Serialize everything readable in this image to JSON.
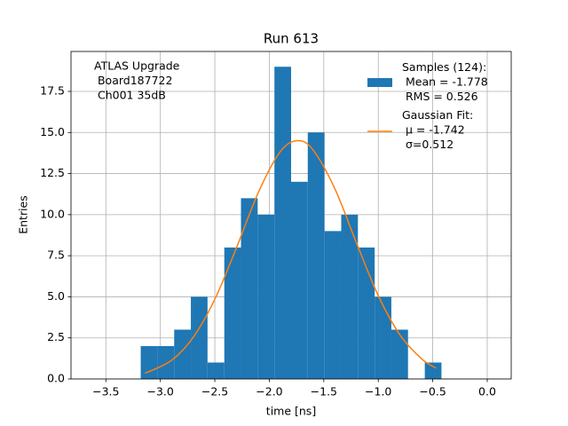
{
  "chart_data": {
    "type": "histogram",
    "title": "Run 613",
    "xlabel": "time [ns]",
    "ylabel": "Entries",
    "annotation": [
      "ATLAS Upgrade",
      " Board187722",
      " Ch001 35dB"
    ],
    "bins": [
      -3.18,
      -3.027,
      -2.873,
      -2.72,
      -2.567,
      -2.413,
      -2.26,
      -2.107,
      -1.953,
      -1.8,
      -1.647,
      -1.493,
      -1.34,
      -1.187,
      -1.033,
      -0.88,
      -0.727,
      -0.573,
      -0.42
    ],
    "series": [
      {
        "name": "Samples (124):\n Mean = -1.778\n RMS = 0.526",
        "color": "#1f77b4",
        "values": [
          2,
          2,
          3,
          5,
          1,
          8,
          11,
          10,
          19,
          12,
          15,
          9,
          10,
          8,
          5,
          3,
          0,
          1
        ]
      },
      {
        "name": "Gaussian Fit:\n μ = -1.742\n σ=0.512",
        "color": "#ff7f0e",
        "x": [
          -3.14,
          -2.9,
          -2.7,
          -2.5,
          -2.3,
          -2.1,
          -1.9,
          -1.742,
          -1.6,
          -1.4,
          -1.2,
          -1.0,
          -0.8,
          -0.6,
          -0.47
        ],
        "values": [
          0.35,
          1.12,
          2.52,
          4.85,
          8.01,
          11.36,
          13.83,
          14.5,
          13.95,
          11.6,
          8.28,
          5.07,
          2.67,
          1.21,
          0.66
        ]
      }
    ],
    "xlim": [
      -3.82,
      0.22
    ],
    "ylim": [
      0,
      19.93
    ],
    "xticks": [
      {
        "value": -3.5,
        "label": "−3.5"
      },
      {
        "value": -3.0,
        "label": "−3.0"
      },
      {
        "value": -2.5,
        "label": "−2.5"
      },
      {
        "value": -2.0,
        "label": "−2.0"
      },
      {
        "value": -1.5,
        "label": "−1.5"
      },
      {
        "value": -1.0,
        "label": "−1.0"
      },
      {
        "value": -0.5,
        "label": "−0.5"
      },
      {
        "value": 0,
        "label": "0.0"
      }
    ],
    "yticks": [
      {
        "value": 0,
        "label": "0.0"
      },
      2.5,
      {
        "value": 5,
        "label": "5.0"
      },
      7.5,
      {
        "value": 10,
        "label": "10.0"
      },
      12.5,
      {
        "value": 15,
        "label": "15.0"
      },
      17.5
    ],
    "grid": true,
    "legend": "upper right"
  }
}
